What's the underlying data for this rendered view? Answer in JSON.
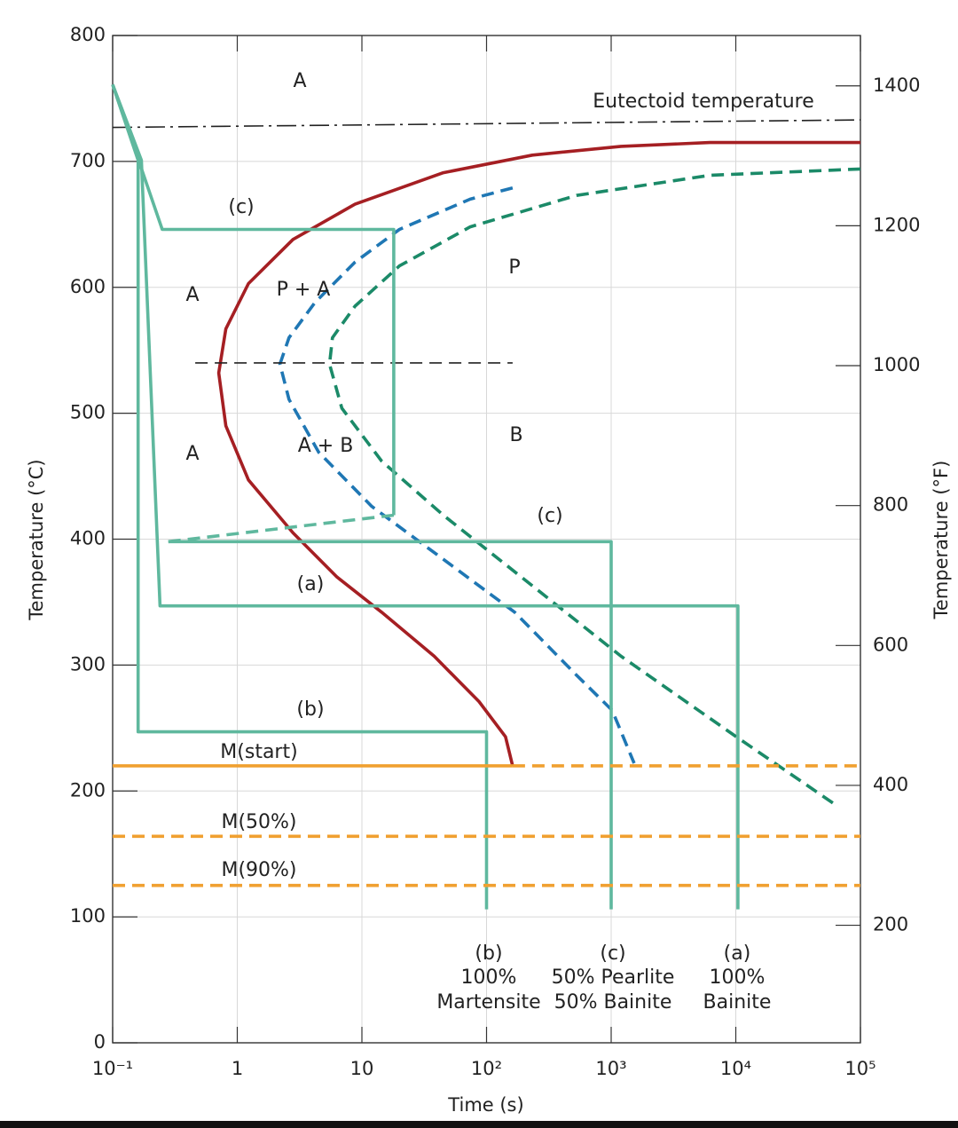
{
  "chart_data": {
    "type": "line",
    "xlabel": "Time (s)",
    "ylabel": "Temperature (°C)",
    "y2label": "Temperature (°F)",
    "xscale": "log",
    "grid": true,
    "xlim": [
      0.1,
      100000
    ],
    "xticks": [
      {
        "value": 0.1,
        "label": "10⁻¹"
      },
      1,
      10,
      {
        "value": 100,
        "label": "10²"
      },
      {
        "value": 1000,
        "label": "10³"
      },
      {
        "value": 10000,
        "label": "10⁴"
      },
      {
        "value": 100000,
        "label": "10⁵"
      }
    ],
    "ylim": [
      0,
      800
    ],
    "yticks": [
      0,
      100,
      200,
      300,
      400,
      500,
      600,
      700,
      800
    ],
    "y2lim": [
      32,
      1472
    ],
    "y2ticks": [
      200,
      400,
      600,
      800,
      1000,
      1200,
      1400
    ],
    "series": [
      {
        "color": "#222222",
        "style": "dashdot",
        "x": [
          0.1,
          100000
        ],
        "values": [
          727,
          733
        ]
      },
      {
        "color": "#a51f23",
        "style": "solid",
        "x": [
          162,
          142,
          87,
          38,
          14.4,
          6.3,
          2.8,
          1.23,
          0.81,
          0.71,
          0.81,
          1.23,
          2.8,
          8.8,
          45,
          233,
          1200,
          6200,
          100000
        ],
        "values": [
          220,
          243,
          271,
          307,
          342,
          370,
          405,
          447,
          490,
          532,
          567,
          603,
          638,
          666,
          691,
          705,
          712,
          715,
          715
        ]
      },
      {
        "color": "#1f77b4",
        "style": "dashed",
        "x": [
          162,
          74,
          20,
          8.8,
          4.2,
          2.6,
          2.2,
          2.6,
          4.5,
          12,
          45,
          168,
          527,
          1020,
          1530
        ],
        "values": [
          679,
          670,
          646,
          620,
          588,
          560,
          539,
          511,
          469,
          426,
          384,
          342,
          292,
          264,
          222
        ]
      },
      {
        "color": "#1b8a68",
        "style": "dashed",
        "x": [
          100000,
          6200,
          527,
          74,
          20,
          8.8,
          5.8,
          5.5,
          6.9,
          14.4,
          45,
          233,
          1200,
          10100,
          61000
        ],
        "values": [
          694,
          689,
          673,
          648,
          617,
          585,
          560,
          539,
          504,
          462,
          419,
          363,
          307,
          243,
          190
        ]
      },
      {
        "color": "#222222",
        "style": "dashed",
        "x": [
          0.46,
          162
        ],
        "values": [
          540,
          540
        ]
      },
      {
        "color": "#5fb89e",
        "style": "dashed",
        "x": [
          0.28,
          18
        ],
        "values": [
          398,
          419
        ]
      },
      {
        "color": "#5fb89e",
        "style": "solid",
        "x": [
          0.1,
          0.17,
          0.24,
          10400,
          10400
        ],
        "values": [
          761,
          701,
          347,
          347,
          106
        ]
      },
      {
        "color": "#5fb89e",
        "style": "solid",
        "x": [
          0.1,
          0.16,
          0.16,
          100,
          100
        ],
        "values": [
          761,
          701,
          247,
          247,
          106
        ]
      },
      {
        "color": "#5fb89e",
        "style": "solid",
        "x": [
          0.1,
          0.25,
          18,
          18
        ],
        "values": [
          761,
          646,
          646,
          419
        ]
      },
      {
        "color": "#5fb89e",
        "style": "solid",
        "x": [
          0.28,
          1000,
          1000
        ],
        "values": [
          398,
          398,
          106
        ]
      },
      {
        "color": "#f0a030",
        "style": "solid",
        "x": [
          0.1,
          162
        ],
        "values": [
          220,
          220
        ]
      },
      {
        "color": "#f0a030",
        "style": "dashed",
        "x": [
          162,
          100000
        ],
        "values": [
          220,
          220
        ]
      },
      {
        "color": "#f0a030",
        "style": "dashed",
        "x": [
          0.1,
          100000
        ],
        "values": [
          164,
          164
        ]
      },
      {
        "color": "#f0a030",
        "style": "dashed",
        "x": [
          0.1,
          100000
        ],
        "values": [
          125,
          125
        ]
      }
    ],
    "annotations": [
      "A",
      "Eutectoid temperature",
      "(c)",
      "P",
      "A",
      "P + A",
      "A",
      "A + B",
      "B",
      "(c)",
      "(a)",
      "(b)",
      "M(start)",
      "M(50%)",
      "M(90%)",
      "(b)",
      "100%",
      "Martensite",
      "(c)",
      "50% Pearlite",
      "50% Bainite",
      "(a)",
      "100%",
      "Bainite"
    ]
  }
}
